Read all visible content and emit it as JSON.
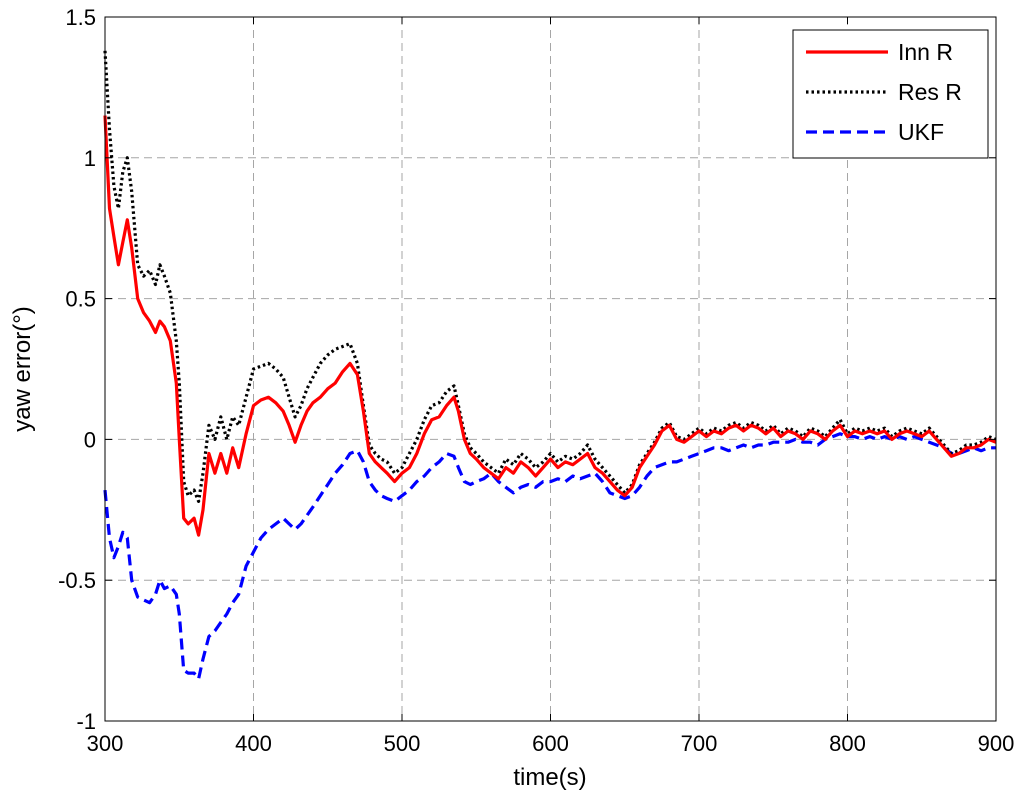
{
  "chart_data": {
    "type": "line",
    "title": "",
    "xlabel": "time(s)",
    "ylabel": "yaw error(°)",
    "xlim": [
      300,
      900
    ],
    "ylim": [
      -1,
      1.5
    ],
    "xticks": [
      300,
      400,
      500,
      600,
      700,
      800,
      900
    ],
    "yticks": [
      -1,
      -0.5,
      0,
      0.5,
      1,
      1.5
    ],
    "xtick_labels": [
      "300",
      "400",
      "500",
      "600",
      "700",
      "800",
      "900"
    ],
    "ytick_labels": [
      "-1",
      "-0.5",
      "0",
      "0.5",
      "1",
      "1.5"
    ],
    "grid": true,
    "legend_position": "top-right",
    "series": [
      {
        "name": "Inn R",
        "color": "#ff0000",
        "style": "solid",
        "x": [
          300,
          303,
          306,
          309,
          312,
          315,
          318,
          322,
          326,
          330,
          334,
          337,
          340,
          344,
          348,
          350,
          353,
          356,
          360,
          363,
          366,
          370,
          374,
          378,
          382,
          386,
          390,
          395,
          400,
          405,
          410,
          415,
          420,
          424,
          428,
          432,
          436,
          440,
          445,
          450,
          455,
          460,
          465,
          470,
          474,
          478,
          482,
          486,
          490,
          495,
          500,
          505,
          510,
          515,
          520,
          525,
          530,
          535,
          538,
          542,
          546,
          550,
          555,
          560,
          565,
          570,
          575,
          580,
          585,
          590,
          595,
          600,
          605,
          610,
          615,
          620,
          625,
          630,
          635,
          640,
          645,
          650,
          655,
          660,
          665,
          670,
          675,
          680,
          685,
          690,
          695,
          700,
          705,
          710,
          715,
          720,
          725,
          730,
          735,
          740,
          745,
          750,
          755,
          760,
          765,
          770,
          775,
          780,
          785,
          790,
          795,
          800,
          805,
          810,
          815,
          820,
          825,
          830,
          835,
          840,
          845,
          850,
          855,
          860,
          865,
          870,
          875,
          880,
          885,
          890,
          895,
          900
        ],
        "y": [
          1.15,
          0.82,
          0.72,
          0.62,
          0.7,
          0.78,
          0.68,
          0.5,
          0.45,
          0.42,
          0.38,
          0.42,
          0.4,
          0.35,
          0.2,
          0.0,
          -0.28,
          -0.3,
          -0.28,
          -0.34,
          -0.25,
          -0.05,
          -0.12,
          -0.05,
          -0.12,
          -0.03,
          -0.1,
          0.02,
          0.12,
          0.14,
          0.15,
          0.13,
          0.1,
          0.05,
          -0.01,
          0.05,
          0.1,
          0.13,
          0.15,
          0.18,
          0.2,
          0.24,
          0.27,
          0.23,
          0.1,
          -0.05,
          -0.08,
          -0.1,
          -0.12,
          -0.15,
          -0.12,
          -0.1,
          -0.05,
          0.02,
          0.07,
          0.08,
          0.12,
          0.15,
          0.1,
          0.0,
          -0.05,
          -0.07,
          -0.1,
          -0.12,
          -0.14,
          -0.1,
          -0.12,
          -0.08,
          -0.1,
          -0.13,
          -0.1,
          -0.07,
          -0.1,
          -0.08,
          -0.09,
          -0.07,
          -0.05,
          -0.1,
          -0.12,
          -0.15,
          -0.18,
          -0.2,
          -0.17,
          -0.1,
          -0.06,
          -0.02,
          0.03,
          0.05,
          0.0,
          -0.01,
          0.01,
          0.03,
          0.01,
          0.03,
          0.02,
          0.04,
          0.05,
          0.03,
          0.05,
          0.04,
          0.02,
          0.04,
          0.01,
          0.03,
          0.02,
          0.0,
          0.03,
          0.02,
          0.0,
          0.03,
          0.05,
          0.01,
          0.03,
          0.02,
          0.03,
          0.02,
          0.03,
          0.0,
          0.02,
          0.03,
          0.02,
          0.01,
          0.03,
          0.0,
          -0.03,
          -0.06,
          -0.05,
          -0.03,
          -0.03,
          -0.02,
          0.0,
          -0.01
        ]
      },
      {
        "name": "Res R",
        "color": "#000000",
        "style": "dotted",
        "x": [
          300,
          303,
          306,
          309,
          312,
          315,
          318,
          322,
          326,
          330,
          334,
          337,
          340,
          344,
          348,
          350,
          353,
          356,
          360,
          363,
          366,
          370,
          374,
          378,
          382,
          386,
          390,
          395,
          400,
          405,
          410,
          415,
          420,
          424,
          428,
          432,
          436,
          440,
          445,
          450,
          455,
          460,
          465,
          470,
          474,
          478,
          482,
          486,
          490,
          495,
          500,
          505,
          510,
          515,
          520,
          525,
          530,
          535,
          538,
          542,
          546,
          550,
          555,
          560,
          565,
          570,
          575,
          580,
          585,
          590,
          595,
          600,
          605,
          610,
          615,
          620,
          625,
          630,
          635,
          640,
          645,
          650,
          655,
          660,
          665,
          670,
          675,
          680,
          685,
          690,
          695,
          700,
          705,
          710,
          715,
          720,
          725,
          730,
          735,
          740,
          745,
          750,
          755,
          760,
          765,
          770,
          775,
          780,
          785,
          790,
          795,
          800,
          805,
          810,
          815,
          820,
          825,
          830,
          835,
          840,
          845,
          850,
          855,
          860,
          865,
          870,
          875,
          880,
          885,
          890,
          895,
          900
        ],
        "y": [
          1.38,
          1.1,
          0.9,
          0.82,
          0.95,
          1.0,
          0.88,
          0.62,
          0.58,
          0.6,
          0.55,
          0.62,
          0.58,
          0.52,
          0.35,
          0.2,
          -0.15,
          -0.2,
          -0.18,
          -0.22,
          -0.12,
          0.05,
          0.0,
          0.08,
          0.0,
          0.08,
          0.05,
          0.15,
          0.25,
          0.26,
          0.27,
          0.25,
          0.22,
          0.15,
          0.08,
          0.12,
          0.18,
          0.22,
          0.27,
          0.3,
          0.32,
          0.33,
          0.34,
          0.27,
          0.12,
          -0.02,
          -0.05,
          -0.07,
          -0.08,
          -0.12,
          -0.1,
          -0.05,
          0.0,
          0.07,
          0.12,
          0.13,
          0.17,
          0.19,
          0.12,
          0.02,
          -0.03,
          -0.05,
          -0.08,
          -0.1,
          -0.12,
          -0.07,
          -0.09,
          -0.05,
          -0.07,
          -0.1,
          -0.08,
          -0.05,
          -0.08,
          -0.06,
          -0.07,
          -0.05,
          -0.02,
          -0.07,
          -0.1,
          -0.13,
          -0.16,
          -0.19,
          -0.16,
          -0.09,
          -0.05,
          -0.01,
          0.04,
          0.06,
          0.01,
          0.0,
          0.02,
          0.04,
          0.02,
          0.04,
          0.03,
          0.05,
          0.06,
          0.04,
          0.06,
          0.05,
          0.03,
          0.05,
          0.02,
          0.04,
          0.03,
          0.01,
          0.04,
          0.03,
          0.01,
          0.04,
          0.07,
          0.02,
          0.04,
          0.03,
          0.04,
          0.03,
          0.04,
          0.01,
          0.03,
          0.04,
          0.03,
          0.02,
          0.04,
          0.01,
          -0.02,
          -0.05,
          -0.04,
          -0.02,
          -0.02,
          -0.01,
          0.01,
          0.0
        ]
      },
      {
        "name": "UKF",
        "color": "#0000ff",
        "style": "dashed",
        "x": [
          300,
          303,
          306,
          309,
          312,
          315,
          318,
          322,
          326,
          330,
          334,
          337,
          340,
          344,
          348,
          350,
          353,
          356,
          360,
          363,
          366,
          370,
          374,
          378,
          382,
          386,
          390,
          395,
          400,
          405,
          410,
          415,
          420,
          424,
          428,
          432,
          436,
          440,
          445,
          450,
          455,
          460,
          465,
          470,
          474,
          478,
          482,
          486,
          490,
          495,
          500,
          505,
          510,
          515,
          520,
          525,
          530,
          535,
          538,
          542,
          546,
          550,
          555,
          560,
          565,
          570,
          575,
          580,
          585,
          590,
          595,
          600,
          605,
          610,
          615,
          620,
          625,
          630,
          635,
          640,
          645,
          650,
          655,
          660,
          665,
          670,
          675,
          680,
          685,
          690,
          695,
          700,
          705,
          710,
          715,
          720,
          725,
          730,
          735,
          740,
          745,
          750,
          755,
          760,
          765,
          770,
          775,
          780,
          785,
          790,
          795,
          800,
          805,
          810,
          815,
          820,
          825,
          830,
          835,
          840,
          845,
          850,
          855,
          860,
          865,
          870,
          875,
          880,
          885,
          890,
          895,
          900
        ],
        "y": [
          -0.18,
          -0.35,
          -0.42,
          -0.38,
          -0.33,
          -0.35,
          -0.5,
          -0.56,
          -0.57,
          -0.58,
          -0.55,
          -0.5,
          -0.53,
          -0.52,
          -0.55,
          -0.62,
          -0.82,
          -0.83,
          -0.83,
          -0.85,
          -0.78,
          -0.7,
          -0.68,
          -0.65,
          -0.62,
          -0.58,
          -0.55,
          -0.45,
          -0.4,
          -0.35,
          -0.32,
          -0.3,
          -0.28,
          -0.3,
          -0.32,
          -0.3,
          -0.27,
          -0.24,
          -0.2,
          -0.16,
          -0.12,
          -0.09,
          -0.05,
          -0.04,
          -0.08,
          -0.15,
          -0.18,
          -0.2,
          -0.21,
          -0.22,
          -0.2,
          -0.18,
          -0.15,
          -0.13,
          -0.1,
          -0.08,
          -0.05,
          -0.06,
          -0.1,
          -0.15,
          -0.16,
          -0.15,
          -0.14,
          -0.12,
          -0.15,
          -0.17,
          -0.19,
          -0.17,
          -0.16,
          -0.17,
          -0.15,
          -0.15,
          -0.14,
          -0.15,
          -0.13,
          -0.14,
          -0.13,
          -0.12,
          -0.15,
          -0.19,
          -0.2,
          -0.21,
          -0.2,
          -0.17,
          -0.13,
          -0.1,
          -0.09,
          -0.08,
          -0.08,
          -0.07,
          -0.06,
          -0.05,
          -0.04,
          -0.03,
          -0.03,
          -0.04,
          -0.03,
          -0.02,
          -0.03,
          -0.02,
          -0.02,
          -0.01,
          -0.01,
          -0.01,
          0.0,
          -0.01,
          -0.01,
          -0.02,
          0.0,
          0.01,
          0.02,
          0.01,
          0.01,
          0.0,
          0.01,
          0.0,
          0.01,
          0.0,
          0.01,
          0.0,
          0.01,
          0.0,
          -0.01,
          -0.02,
          -0.03,
          -0.05,
          -0.05,
          -0.04,
          -0.03,
          -0.04,
          -0.03,
          -0.03
        ]
      }
    ]
  }
}
